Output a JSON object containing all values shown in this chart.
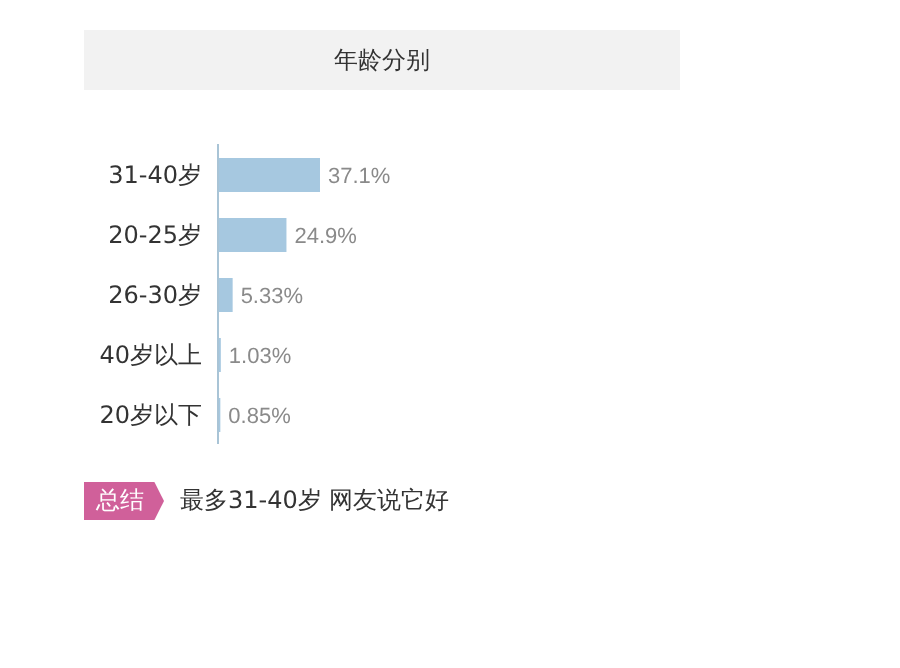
{
  "chart_data": {
    "type": "bar",
    "orientation": "horizontal",
    "title": "年龄分别",
    "categories": [
      "31-40岁",
      "20-25岁",
      "26-30岁",
      "40岁以上",
      "20岁以下"
    ],
    "values": [
      37.1,
      24.9,
      5.33,
      1.03,
      0.85
    ],
    "value_labels": [
      "37.1%",
      "24.9%",
      "5.33%",
      "1.03%",
      "0.85%"
    ],
    "color": "#a6c8e0",
    "tick_labels": "y",
    "annotations": [
      "总结",
      "最多31-40岁 网友说它好"
    ]
  }
}
